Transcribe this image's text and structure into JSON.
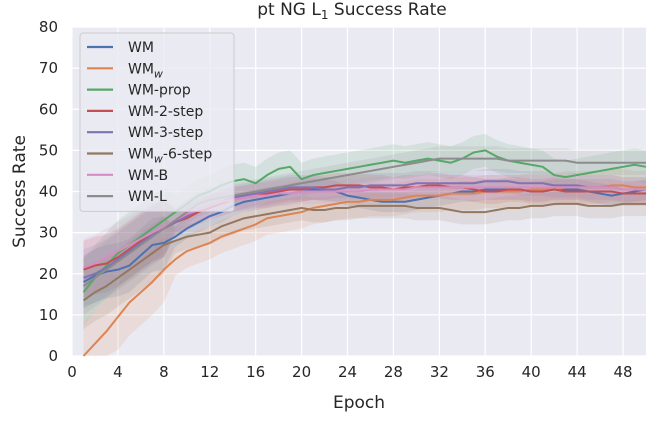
{
  "chart_data": {
    "type": "line",
    "title": "pt NG L",
    "title_subscript": "1",
    "title_suffix": " Success Rate",
    "xlabel": "Epoch",
    "ylabel": "Success Rate",
    "xlim": [
      0,
      50
    ],
    "ylim": [
      0,
      80
    ],
    "x_ticks": [
      0,
      4,
      8,
      12,
      16,
      20,
      24,
      28,
      32,
      36,
      40,
      44,
      48
    ],
    "y_ticks": [
      0,
      10,
      20,
      30,
      40,
      50,
      60,
      70,
      80
    ],
    "grid": true,
    "legend_position": "top-left",
    "background_color": "#eaeaf2",
    "series": [
      {
        "name": "WM",
        "color": "#4c72b0",
        "x": [
          1,
          2,
          3,
          4,
          5,
          6,
          7,
          8,
          9,
          10,
          11,
          12,
          13,
          14,
          15,
          16,
          17,
          18,
          19,
          20,
          21,
          22,
          23,
          24,
          25,
          26,
          27,
          28,
          29,
          30,
          31,
          32,
          33,
          34,
          35,
          36,
          37,
          38,
          39,
          40,
          41,
          42,
          43,
          44,
          45,
          46,
          47,
          48,
          49,
          50
        ],
        "y": [
          18,
          19.5,
          20.5,
          21,
          22,
          24.5,
          27,
          27.5,
          29,
          31,
          32.5,
          34,
          35,
          36.5,
          37.5,
          38,
          38.5,
          39,
          39.5,
          40,
          40.5,
          40.5,
          40,
          39,
          38.5,
          38,
          37.5,
          37.5,
          37.5,
          38,
          38.5,
          39,
          39.5,
          40,
          40,
          40.5,
          40.5,
          40.5,
          40.5,
          40,
          40,
          40.5,
          40.5,
          40.5,
          40,
          39.5,
          39,
          39.5,
          40,
          40.5
        ],
        "band": 2.5
      },
      {
        "name": "WMw",
        "name_sub": "w",
        "color": "#dd8452",
        "x": [
          1,
          2,
          3,
          4,
          5,
          6,
          7,
          8,
          9,
          10,
          11,
          12,
          13,
          14,
          15,
          16,
          17,
          18,
          19,
          20,
          21,
          22,
          23,
          24,
          25,
          26,
          27,
          28,
          29,
          30,
          31,
          32,
          33,
          34,
          35,
          36,
          37,
          38,
          39,
          40,
          41,
          42,
          43,
          44,
          45,
          46,
          47,
          48,
          49,
          50
        ],
        "y": [
          0,
          3,
          6,
          9.5,
          13,
          15.5,
          18,
          21,
          23.5,
          25.5,
          26.5,
          27.5,
          29,
          30,
          31,
          32,
          33.5,
          34,
          34.5,
          35,
          36,
          36.5,
          37,
          37.5,
          37.5,
          38,
          38,
          38,
          38.5,
          39,
          39,
          39,
          39.5,
          39.5,
          39.5,
          40,
          40,
          40,
          40,
          40.5,
          40.5,
          40.5,
          41,
          41,
          41,
          41,
          41.5,
          41.5,
          41,
          41
        ],
        "band": 4
      },
      {
        "name": "WM-prop",
        "color": "#55a868",
        "x": [
          1,
          2,
          3,
          4,
          5,
          6,
          7,
          8,
          9,
          10,
          11,
          12,
          13,
          14,
          15,
          16,
          17,
          18,
          19,
          20,
          21,
          22,
          23,
          24,
          25,
          26,
          27,
          28,
          29,
          30,
          31,
          32,
          33,
          34,
          35,
          36,
          37,
          38,
          39,
          40,
          41,
          42,
          43,
          44,
          45,
          46,
          47,
          48,
          49,
          50
        ],
        "y": [
          15.5,
          19,
          22,
          25,
          27,
          29,
          31,
          33,
          35,
          37,
          39,
          40,
          41.5,
          42.5,
          43,
          42,
          44,
          45.5,
          46,
          43,
          44,
          44.5,
          45,
          45.5,
          46,
          46.5,
          47,
          47.5,
          47,
          47.5,
          48,
          47.5,
          47,
          48,
          49.5,
          50,
          48.5,
          47.5,
          47,
          46.5,
          46,
          44,
          43.5,
          44,
          44.5,
          45,
          45.5,
          46,
          46.5,
          46
        ],
        "band": 4
      },
      {
        "name": "WM-2-step",
        "color": "#c44e52",
        "x": [
          1,
          2,
          3,
          4,
          5,
          6,
          7,
          8,
          9,
          10,
          11,
          12,
          13,
          14,
          15,
          16,
          17,
          18,
          19,
          20,
          21,
          22,
          23,
          24,
          25,
          26,
          27,
          28,
          29,
          30,
          31,
          32,
          33,
          34,
          35,
          36,
          37,
          38,
          39,
          40,
          41,
          42,
          43,
          44,
          45,
          46,
          47,
          48,
          49,
          50
        ],
        "y": [
          21,
          22,
          22.5,
          24,
          26,
          28,
          30,
          31,
          32.5,
          33.5,
          35,
          36,
          37,
          38,
          38.5,
          39,
          39.5,
          40,
          40.5,
          40.5,
          41,
          41,
          41.5,
          41.5,
          41.5,
          41,
          41,
          40.5,
          41,
          41,
          41.5,
          41.5,
          41,
          41,
          40.5,
          40,
          40,
          40.5,
          40.5,
          40,
          40,
          40.5,
          40,
          40,
          40,
          40,
          40,
          39.5,
          39.5,
          39.5
        ],
        "band": 3
      },
      {
        "name": "WM-3-step",
        "color": "#8172b3",
        "x": [
          1,
          2,
          3,
          4,
          5,
          6,
          7,
          8,
          9,
          10,
          11,
          12,
          13,
          14,
          15,
          16,
          17,
          18,
          19,
          20,
          21,
          22,
          23,
          24,
          25,
          26,
          27,
          28,
          29,
          30,
          31,
          32,
          33,
          34,
          35,
          36,
          37,
          38,
          39,
          40,
          41,
          42,
          43,
          44,
          45,
          46,
          47,
          48,
          49,
          50
        ],
        "y": [
          19,
          20,
          21.5,
          23.5,
          25.5,
          27.5,
          29.5,
          31,
          32.5,
          34,
          35.5,
          36.5,
          37.5,
          38.5,
          39,
          39.5,
          40,
          40.5,
          41,
          41,
          41,
          40.5,
          40.5,
          41,
          41,
          41.5,
          41.5,
          41.5,
          41.5,
          42,
          42,
          42,
          42,
          42,
          42,
          42.5,
          42.5,
          42.5,
          42,
          42,
          42,
          41.5,
          41.5,
          41.5,
          41,
          41,
          41,
          40.5,
          40.5,
          40.5
        ],
        "band": 3
      },
      {
        "name": "WMw-6-step",
        "name_sub": "w",
        "name_suffix": "-6-step",
        "color": "#937860",
        "x": [
          1,
          2,
          3,
          4,
          5,
          6,
          7,
          8,
          9,
          10,
          11,
          12,
          13,
          14,
          15,
          16,
          17,
          18,
          19,
          20,
          21,
          22,
          23,
          24,
          25,
          26,
          27,
          28,
          29,
          30,
          31,
          32,
          33,
          34,
          35,
          36,
          37,
          38,
          39,
          40,
          41,
          42,
          43,
          44,
          45,
          46,
          47,
          48,
          49,
          50
        ],
        "y": [
          13.5,
          15.5,
          17,
          19,
          21,
          23,
          25,
          27,
          28,
          29,
          29.5,
          30,
          31.5,
          32.5,
          33.5,
          34,
          34.5,
          35,
          35.5,
          36,
          35.5,
          35.5,
          36,
          36,
          36.5,
          36.5,
          36.5,
          36.5,
          36.5,
          36,
          36,
          36,
          35.5,
          35,
          35,
          35,
          35.5,
          36,
          36,
          36.5,
          36.5,
          37,
          37,
          37,
          36.5,
          36.5,
          36.5,
          37,
          37,
          37
        ],
        "band": 3
      },
      {
        "name": "WM-B",
        "color": "#da8bc3",
        "x": [
          1,
          2,
          3,
          4,
          5,
          6,
          7,
          8,
          9,
          10,
          11,
          12,
          13,
          14,
          15,
          16,
          17,
          18,
          19,
          20,
          21,
          22,
          23,
          24,
          25,
          26,
          27,
          28,
          29,
          30,
          31,
          32,
          33,
          34,
          35,
          36,
          37,
          38,
          39,
          40,
          41,
          42,
          43,
          44,
          45,
          46,
          47,
          48,
          49,
          50
        ],
        "y": [
          21.5,
          22.5,
          24,
          25.5,
          27,
          28.5,
          30,
          31.5,
          33,
          34.5,
          35.5,
          36.5,
          37.5,
          38,
          38.5,
          39,
          39,
          39.5,
          39.5,
          40,
          40,
          40,
          40,
          40,
          40,
          40.5,
          40.5,
          40.5,
          40.5,
          41,
          41,
          41,
          41,
          41,
          41,
          41,
          41,
          41,
          41,
          41,
          41,
          41,
          41,
          41,
          41,
          41,
          41,
          40.5,
          40.5,
          40.5
        ],
        "band": 3
      },
      {
        "name": "WM-L",
        "color": "#8c8c8c",
        "x": [
          1,
          2,
          3,
          4,
          5,
          6,
          7,
          8,
          9,
          10,
          11,
          12,
          13,
          14,
          15,
          16,
          17,
          18,
          19,
          20,
          21,
          22,
          23,
          24,
          25,
          26,
          27,
          28,
          29,
          30,
          31,
          32,
          33,
          34,
          35,
          36,
          37,
          38,
          39,
          40,
          41,
          42,
          43,
          44,
          45,
          46,
          47,
          48,
          49,
          50
        ],
        "y": [
          17,
          19,
          21,
          23,
          25,
          27,
          29,
          31,
          33,
          35,
          37,
          38,
          38.5,
          39,
          39.5,
          40,
          40.5,
          41,
          41.5,
          42,
          42.5,
          43,
          43.5,
          44,
          44.5,
          45,
          45.5,
          46,
          46.5,
          47,
          47.5,
          48,
          48,
          48,
          48,
          48,
          48,
          47.5,
          47.5,
          47.5,
          47.5,
          47.5,
          47.5,
          47,
          47,
          47,
          47,
          47,
          47,
          47
        ],
        "band": 3
      }
    ]
  }
}
